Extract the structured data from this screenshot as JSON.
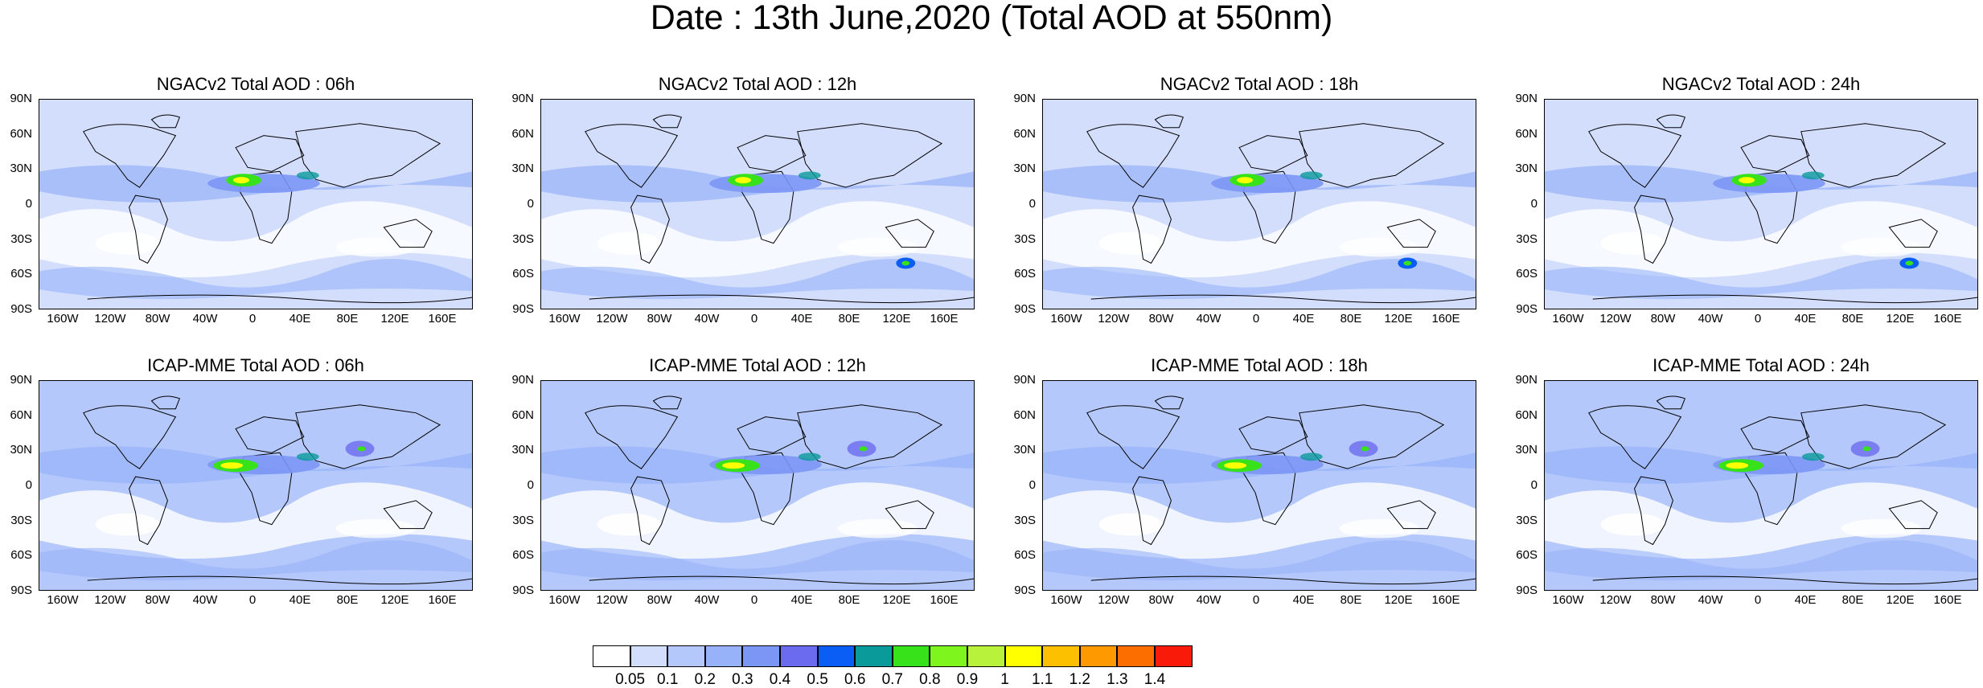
{
  "title": "Date : 13th June,2020 (Total AOD at 550nm)",
  "panels": [
    {
      "title": "NGACv2 Total AOD : 06h",
      "model": "NGACv2",
      "hour": "06h"
    },
    {
      "title": "NGACv2 Total AOD : 12h",
      "model": "NGACv2",
      "hour": "12h"
    },
    {
      "title": "NGACv2 Total AOD : 18h",
      "model": "NGACv2",
      "hour": "18h"
    },
    {
      "title": "NGACv2 Total AOD : 24h",
      "model": "NGACv2",
      "hour": "24h"
    },
    {
      "title": "ICAP-MME Total AOD : 06h",
      "model": "ICAP-MME",
      "hour": "06h"
    },
    {
      "title": "ICAP-MME Total AOD : 12h",
      "model": "ICAP-MME",
      "hour": "12h"
    },
    {
      "title": "ICAP-MME Total AOD : 18h",
      "model": "ICAP-MME",
      "hour": "18h"
    },
    {
      "title": "ICAP-MME Total AOD : 24h",
      "model": "ICAP-MME",
      "hour": "24h"
    }
  ],
  "lat_ticks": [
    "90N",
    "60N",
    "30N",
    "0",
    "30S",
    "60S",
    "90S"
  ],
  "lon_ticks": [
    "160W",
    "120W",
    "80W",
    "40W",
    "0",
    "40E",
    "80E",
    "120E",
    "160E"
  ],
  "colorbar": {
    "labels": [
      "0.05",
      "0.1",
      "0.2",
      "0.3",
      "0.4",
      "0.5",
      "0.6",
      "0.7",
      "0.8",
      "0.9",
      "1",
      "1.1",
      "1.2",
      "1.3",
      "1.4"
    ],
    "colors": [
      "#ffffff",
      "#d3defc",
      "#b4c8fb",
      "#97b2f9",
      "#7b96f5",
      "#6b6bef",
      "#0a5ef5",
      "#0a9a9a",
      "#38e21b",
      "#7ff51e",
      "#b9f23a",
      "#ffff00",
      "#fdc000",
      "#fe9a00",
      "#fd6e00",
      "#fa1a0a"
    ]
  }
}
